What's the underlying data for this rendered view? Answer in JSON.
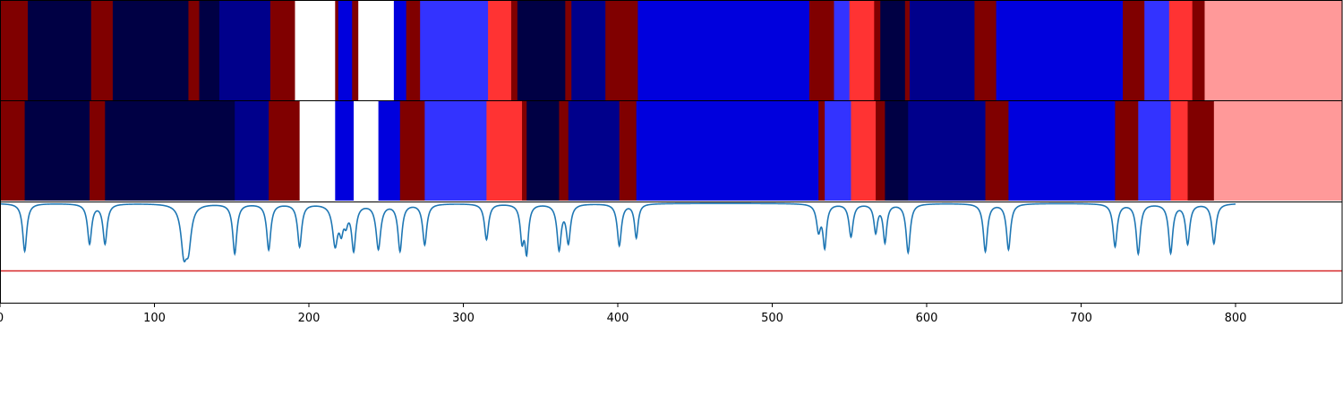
{
  "chart_data": {
    "type": "heatmap",
    "xlim": [
      0,
      869
    ],
    "x_ticks": [
      {
        "value": 0,
        "label": "0"
      },
      {
        "value": 100,
        "label": "100"
      },
      {
        "value": 200,
        "label": "200"
      },
      {
        "value": 300,
        "label": "300"
      },
      {
        "value": 400,
        "label": "400"
      },
      {
        "value": 500,
        "label": "500"
      },
      {
        "value": 600,
        "label": "600"
      },
      {
        "value": 700,
        "label": "700"
      },
      {
        "value": 800,
        "label": "800"
      }
    ],
    "colors": {
      "dark_red": "#800000",
      "navy_dark": "#000044",
      "navy": "#00008b",
      "blue": "#0000dd",
      "light_blue": "#3333ff",
      "red": "#ff3333",
      "pink": "#ff9999",
      "white": "#ffffff",
      "signal_line": "#1f77b4",
      "threshold_line": "#d62728",
      "frame": "#000000"
    },
    "bands": [
      {
        "name": "row-1",
        "segments": [
          {
            "start": 0,
            "end": 18,
            "color": "#800000"
          },
          {
            "start": 18,
            "end": 59,
            "color": "#000044"
          },
          {
            "start": 59,
            "end": 73,
            "color": "#800000"
          },
          {
            "start": 73,
            "end": 122,
            "color": "#000044"
          },
          {
            "start": 122,
            "end": 129,
            "color": "#800000"
          },
          {
            "start": 129,
            "end": 142,
            "color": "#000044"
          },
          {
            "start": 142,
            "end": 175,
            "color": "#00008b"
          },
          {
            "start": 175,
            "end": 191,
            "color": "#800000"
          },
          {
            "start": 191,
            "end": 217,
            "color": "#ffffff"
          },
          {
            "start": 217,
            "end": 219,
            "color": "#800000"
          },
          {
            "start": 219,
            "end": 228,
            "color": "#0000dd"
          },
          {
            "start": 228,
            "end": 232,
            "color": "#800000"
          },
          {
            "start": 232,
            "end": 255,
            "color": "#ffffff"
          },
          {
            "start": 255,
            "end": 263,
            "color": "#0000dd"
          },
          {
            "start": 263,
            "end": 272,
            "color": "#800000"
          },
          {
            "start": 272,
            "end": 316,
            "color": "#3333ff"
          },
          {
            "start": 316,
            "end": 331,
            "color": "#ff3333"
          },
          {
            "start": 331,
            "end": 335,
            "color": "#800000"
          },
          {
            "start": 335,
            "end": 366,
            "color": "#000044"
          },
          {
            "start": 366,
            "end": 370,
            "color": "#800000"
          },
          {
            "start": 370,
            "end": 392,
            "color": "#00008b"
          },
          {
            "start": 392,
            "end": 413,
            "color": "#800000"
          },
          {
            "start": 413,
            "end": 524,
            "color": "#0000dd"
          },
          {
            "start": 524,
            "end": 540,
            "color": "#800000"
          },
          {
            "start": 540,
            "end": 550,
            "color": "#3333ff"
          },
          {
            "start": 550,
            "end": 566,
            "color": "#ff3333"
          },
          {
            "start": 566,
            "end": 570,
            "color": "#800000"
          },
          {
            "start": 570,
            "end": 586,
            "color": "#000044"
          },
          {
            "start": 586,
            "end": 589,
            "color": "#800000"
          },
          {
            "start": 589,
            "end": 631,
            "color": "#00008b"
          },
          {
            "start": 631,
            "end": 645,
            "color": "#800000"
          },
          {
            "start": 645,
            "end": 727,
            "color": "#0000dd"
          },
          {
            "start": 727,
            "end": 741,
            "color": "#800000"
          },
          {
            "start": 741,
            "end": 757,
            "color": "#3333ff"
          },
          {
            "start": 757,
            "end": 772,
            "color": "#ff3333"
          },
          {
            "start": 772,
            "end": 780,
            "color": "#800000"
          },
          {
            "start": 780,
            "end": 869,
            "color": "#ff9999"
          }
        ]
      },
      {
        "name": "row-2",
        "segments": [
          {
            "start": 0,
            "end": 16,
            "color": "#800000"
          },
          {
            "start": 16,
            "end": 58,
            "color": "#000044"
          },
          {
            "start": 58,
            "end": 68,
            "color": "#800000"
          },
          {
            "start": 68,
            "end": 152,
            "color": "#000044"
          },
          {
            "start": 152,
            "end": 174,
            "color": "#00008b"
          },
          {
            "start": 174,
            "end": 194,
            "color": "#800000"
          },
          {
            "start": 194,
            "end": 217,
            "color": "#ffffff"
          },
          {
            "start": 217,
            "end": 229,
            "color": "#0000dd"
          },
          {
            "start": 229,
            "end": 245,
            "color": "#ffffff"
          },
          {
            "start": 245,
            "end": 259,
            "color": "#0000dd"
          },
          {
            "start": 259,
            "end": 275,
            "color": "#800000"
          },
          {
            "start": 275,
            "end": 315,
            "color": "#3333ff"
          },
          {
            "start": 315,
            "end": 338,
            "color": "#ff3333"
          },
          {
            "start": 338,
            "end": 341,
            "color": "#800000"
          },
          {
            "start": 341,
            "end": 362,
            "color": "#000044"
          },
          {
            "start": 362,
            "end": 368,
            "color": "#800000"
          },
          {
            "start": 368,
            "end": 401,
            "color": "#00008b"
          },
          {
            "start": 401,
            "end": 412,
            "color": "#800000"
          },
          {
            "start": 412,
            "end": 530,
            "color": "#0000dd"
          },
          {
            "start": 530,
            "end": 534,
            "color": "#800000"
          },
          {
            "start": 534,
            "end": 551,
            "color": "#3333ff"
          },
          {
            "start": 551,
            "end": 567,
            "color": "#ff3333"
          },
          {
            "start": 567,
            "end": 573,
            "color": "#800000"
          },
          {
            "start": 573,
            "end": 588,
            "color": "#000044"
          },
          {
            "start": 588,
            "end": 638,
            "color": "#00008b"
          },
          {
            "start": 638,
            "end": 653,
            "color": "#800000"
          },
          {
            "start": 653,
            "end": 722,
            "color": "#0000dd"
          },
          {
            "start": 722,
            "end": 737,
            "color": "#800000"
          },
          {
            "start": 737,
            "end": 758,
            "color": "#3333ff"
          },
          {
            "start": 758,
            "end": 769,
            "color": "#ff3333"
          },
          {
            "start": 769,
            "end": 786,
            "color": "#800000"
          },
          {
            "start": 786,
            "end": 869,
            "color": "#ff9999"
          }
        ]
      }
    ],
    "signal": {
      "baseline": 1.0,
      "ylim": [
        0,
        1.0
      ],
      "threshold": 0.32,
      "dips": [
        {
          "x": 16,
          "depth": 0.48,
          "width": 1.6
        },
        {
          "x": 58,
          "depth": 0.4,
          "width": 1.6
        },
        {
          "x": 68,
          "depth": 0.4,
          "width": 1.6
        },
        {
          "x": 119,
          "depth": 0.44,
          "width": 2.2
        },
        {
          "x": 122,
          "depth": 0.38,
          "width": 2.2
        },
        {
          "x": 152,
          "depth": 0.5,
          "width": 1.6
        },
        {
          "x": 174,
          "depth": 0.46,
          "width": 1.6
        },
        {
          "x": 194,
          "depth": 0.43,
          "width": 1.6
        },
        {
          "x": 217,
          "depth": 0.4,
          "width": 2.0
        },
        {
          "x": 221,
          "depth": 0.22,
          "width": 1.5
        },
        {
          "x": 224,
          "depth": 0.15,
          "width": 1.5
        },
        {
          "x": 229,
          "depth": 0.45,
          "width": 1.6
        },
        {
          "x": 245,
          "depth": 0.45,
          "width": 1.8
        },
        {
          "x": 259,
          "depth": 0.47,
          "width": 1.6
        },
        {
          "x": 275,
          "depth": 0.41,
          "width": 1.6
        },
        {
          "x": 315,
          "depth": 0.36,
          "width": 1.6
        },
        {
          "x": 338,
          "depth": 0.34,
          "width": 1.4
        },
        {
          "x": 341,
          "depth": 0.46,
          "width": 1.4
        },
        {
          "x": 362,
          "depth": 0.45,
          "width": 1.6
        },
        {
          "x": 368,
          "depth": 0.38,
          "width": 1.6
        },
        {
          "x": 401,
          "depth": 0.42,
          "width": 1.6
        },
        {
          "x": 412,
          "depth": 0.34,
          "width": 1.4
        },
        {
          "x": 530,
          "depth": 0.26,
          "width": 1.6
        },
        {
          "x": 534,
          "depth": 0.42,
          "width": 1.4
        },
        {
          "x": 551,
          "depth": 0.33,
          "width": 1.6
        },
        {
          "x": 567,
          "depth": 0.28,
          "width": 1.4
        },
        {
          "x": 573,
          "depth": 0.38,
          "width": 1.4
        },
        {
          "x": 588,
          "depth": 0.49,
          "width": 1.6
        },
        {
          "x": 638,
          "depth": 0.48,
          "width": 1.6
        },
        {
          "x": 653,
          "depth": 0.46,
          "width": 1.6
        },
        {
          "x": 722,
          "depth": 0.43,
          "width": 1.6
        },
        {
          "x": 737,
          "depth": 0.5,
          "width": 1.6
        },
        {
          "x": 758,
          "depth": 0.49,
          "width": 1.6
        },
        {
          "x": 769,
          "depth": 0.4,
          "width": 1.6
        },
        {
          "x": 786,
          "depth": 0.4,
          "width": 1.6
        }
      ]
    }
  }
}
